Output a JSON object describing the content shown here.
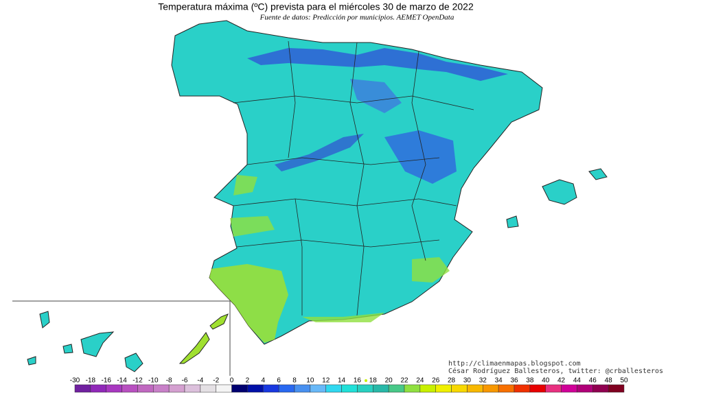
{
  "header": {
    "title": "Temperatura máxima (ºC) prevista para el miércoles 30 de marzo de 2022",
    "subtitle": "Fuente de datos: Predicción por municipios. AEMET OpenData"
  },
  "credits": [
    "http://climaenmapas.blogspot.com",
    "César Rodríguez Ballesteros, twitter: @crballesteros"
  ],
  "legend": {
    "labels": [
      "-30",
      "-18",
      "-16",
      "-14",
      "-12",
      "-10",
      "-8",
      "-6",
      "-4",
      "-2",
      "0",
      "2",
      "4",
      "6",
      "8",
      "10",
      "12",
      "14",
      "16",
      "18",
      "20",
      "22",
      "24",
      "26",
      "28",
      "30",
      "32",
      "34",
      "36",
      "38",
      "40",
      "42",
      "44",
      "46",
      "48",
      "50"
    ],
    "colors": [
      "#7020a0",
      "#9028b8",
      "#a838c0",
      "#b850c0",
      "#c068c0",
      "#c880c8",
      "#d4a0d0",
      "#dcc0dc",
      "#e4e0e4",
      "#f4f4f4",
      "#000070",
      "#0010a8",
      "#1838e0",
      "#2868f0",
      "#4890f0",
      "#68b8f8",
      "#30d8f0",
      "#20e0d8",
      "#28d0c0",
      "#28b8a8",
      "#48c888",
      "#90e040",
      "#c8f000",
      "#f0f000",
      "#f8d800",
      "#f8b800",
      "#f89800",
      "#f87000",
      "#f03000",
      "#e80000",
      "#e83080",
      "#d00098",
      "#b00078",
      "#900050",
      "#800020"
    ]
  }
}
